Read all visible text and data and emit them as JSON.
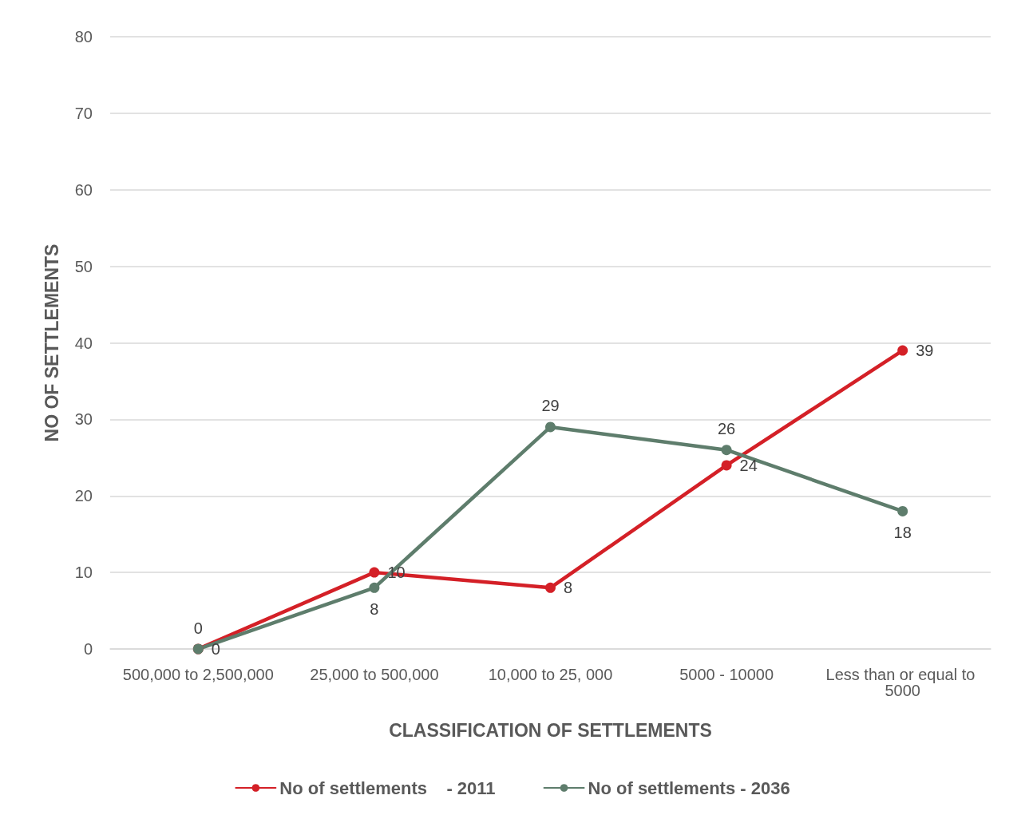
{
  "chart_data": {
    "type": "line",
    "xlabel": "CLASSIFICATION OF SETTLEMENTS",
    "ylabel": "NO OF SETTLEMENTS",
    "categories": [
      "500,000 to 2,500,000",
      "25,000 to 500,000",
      "10,000 to 25, 000",
      "5000 - 10000",
      "Less than or equal to 5000"
    ],
    "series": [
      {
        "name": "No of settlements    - 2011",
        "color": "#d42027",
        "values": [
          0,
          10,
          8,
          24,
          39
        ]
      },
      {
        "name": "No of settlements - 2036",
        "color": "#5e7d6c",
        "values": [
          0,
          8,
          29,
          26,
          18
        ]
      }
    ],
    "ylim": [
      0,
      80
    ],
    "yticks": [
      0,
      10,
      20,
      30,
      40,
      50,
      60,
      70,
      80
    ],
    "grid": "y",
    "legend": "bottom",
    "marker": "circle",
    "line_style": "solid",
    "data_labels": true
  }
}
